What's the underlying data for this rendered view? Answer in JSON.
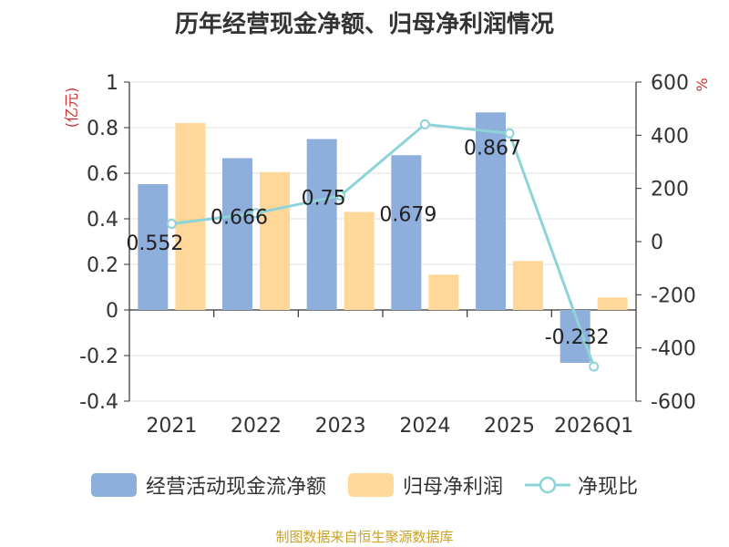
{
  "title": "历年经营现金净额、归母净利润情况",
  "source": "制图数据来自恒生聚源数据库",
  "chart_data": {
    "type": "bar",
    "categories": [
      "2021",
      "2022",
      "2023",
      "2024",
      "2025",
      "2026Q1"
    ],
    "series": [
      {
        "name": "经营活动现金流净额",
        "type": "bar",
        "axis": "left",
        "color": "#8eaedb",
        "values": [
          0.552,
          0.666,
          0.75,
          0.679,
          0.867,
          -0.232
        ],
        "labels": [
          "0.552",
          "0.666",
          "0.75",
          "0.679",
          "0.867",
          "-0.232"
        ]
      },
      {
        "name": "归母净利润",
        "type": "bar",
        "axis": "left",
        "color": "#ffd899",
        "values": [
          0.82,
          0.605,
          0.43,
          0.155,
          0.215,
          0.055
        ]
      },
      {
        "name": "净现比",
        "type": "line",
        "axis": "right",
        "color": "#8dd3d7",
        "values": [
          67,
          107,
          173,
          441,
          407,
          -470
        ]
      }
    ],
    "left_axis": {
      "label": "(亿元)",
      "min": -0.4,
      "max": 1,
      "ticks": [
        "-0.4",
        "-0.2",
        "0",
        "0.2",
        "0.4",
        "0.6",
        "0.8",
        "1"
      ]
    },
    "right_axis": {
      "label": "%",
      "min": -600,
      "max": 600,
      "ticks": [
        "-600",
        "-400",
        "-200",
        "0",
        "200",
        "400",
        "600"
      ]
    },
    "legend_position": "bottom"
  }
}
